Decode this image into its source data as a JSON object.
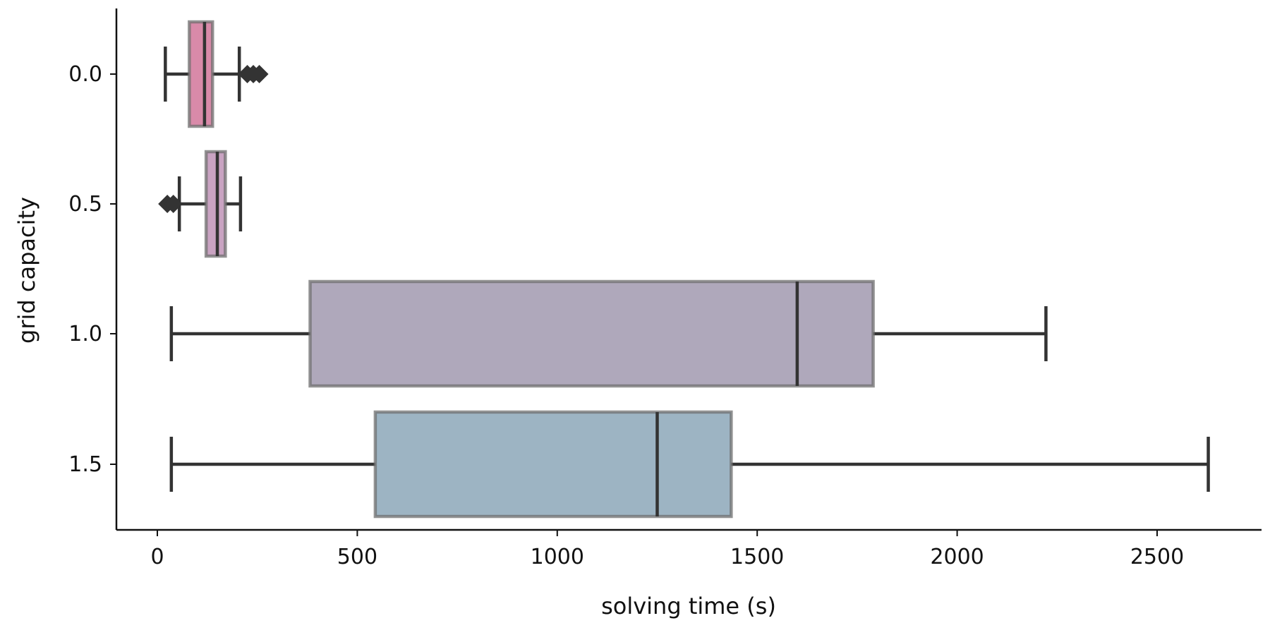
{
  "chart_data": {
    "type": "boxplot",
    "orientation": "horizontal",
    "xlabel": "solving time (s)",
    "ylabel": "grid capacity",
    "xlim": [
      -100,
      2750
    ],
    "xticks": [
      0,
      500,
      1000,
      1500,
      2000,
      2500
    ],
    "xtick_labels": [
      "0",
      "500",
      "1000",
      "1500",
      "2000",
      "2500"
    ],
    "grid": false,
    "legend": "none",
    "categories": [
      "0.0",
      "0.5",
      "1.0",
      "1.5"
    ],
    "boxes": [
      {
        "category": "0.0",
        "whislo": 20,
        "q1": 80,
        "med": 118,
        "q3": 138,
        "whishi": 205,
        "fliers": [
          225,
          240,
          255
        ],
        "color": "#d98aa9"
      },
      {
        "category": "0.5",
        "whislo": 55,
        "q1": 122,
        "med": 150,
        "q3": 170,
        "whishi": 208,
        "fliers": [
          25,
          40
        ],
        "color": "#c9a3c2"
      },
      {
        "category": "1.0",
        "whislo": 35,
        "q1": 382,
        "med": 1600,
        "q3": 1790,
        "whishi": 2222,
        "fliers": [],
        "color": "#afa8bb"
      },
      {
        "category": "1.5",
        "whislo": 35,
        "q1": 545,
        "med": 1250,
        "q3": 1435,
        "whishi": 2628,
        "fliers": [],
        "color": "#9db4c3"
      }
    ]
  }
}
